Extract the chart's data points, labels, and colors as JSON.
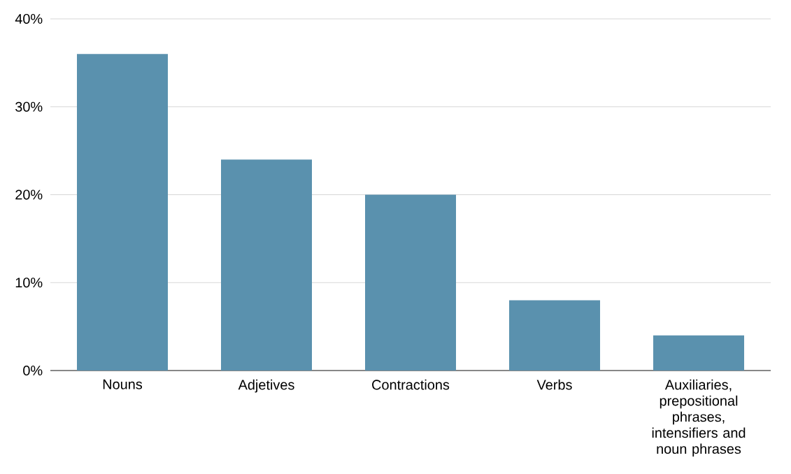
{
  "chart_data": {
    "type": "bar",
    "categories": [
      "Nouns",
      "Adjetives",
      "Contractions",
      "Verbs",
      "Auxiliaries, prepositional phrases, intensifiers and noun phrases"
    ],
    "values": [
      36,
      24,
      20,
      8,
      4
    ],
    "color": "#5a91ae",
    "ylim": [
      0,
      40
    ],
    "yticks": [
      {
        "value": 0,
        "label": "0%"
      },
      {
        "value": 10,
        "label": "10%"
      },
      {
        "value": 20,
        "label": "20%"
      },
      {
        "value": 30,
        "label": "30%"
      },
      {
        "value": 40,
        "label": "40%"
      }
    ],
    "grid": "y"
  }
}
